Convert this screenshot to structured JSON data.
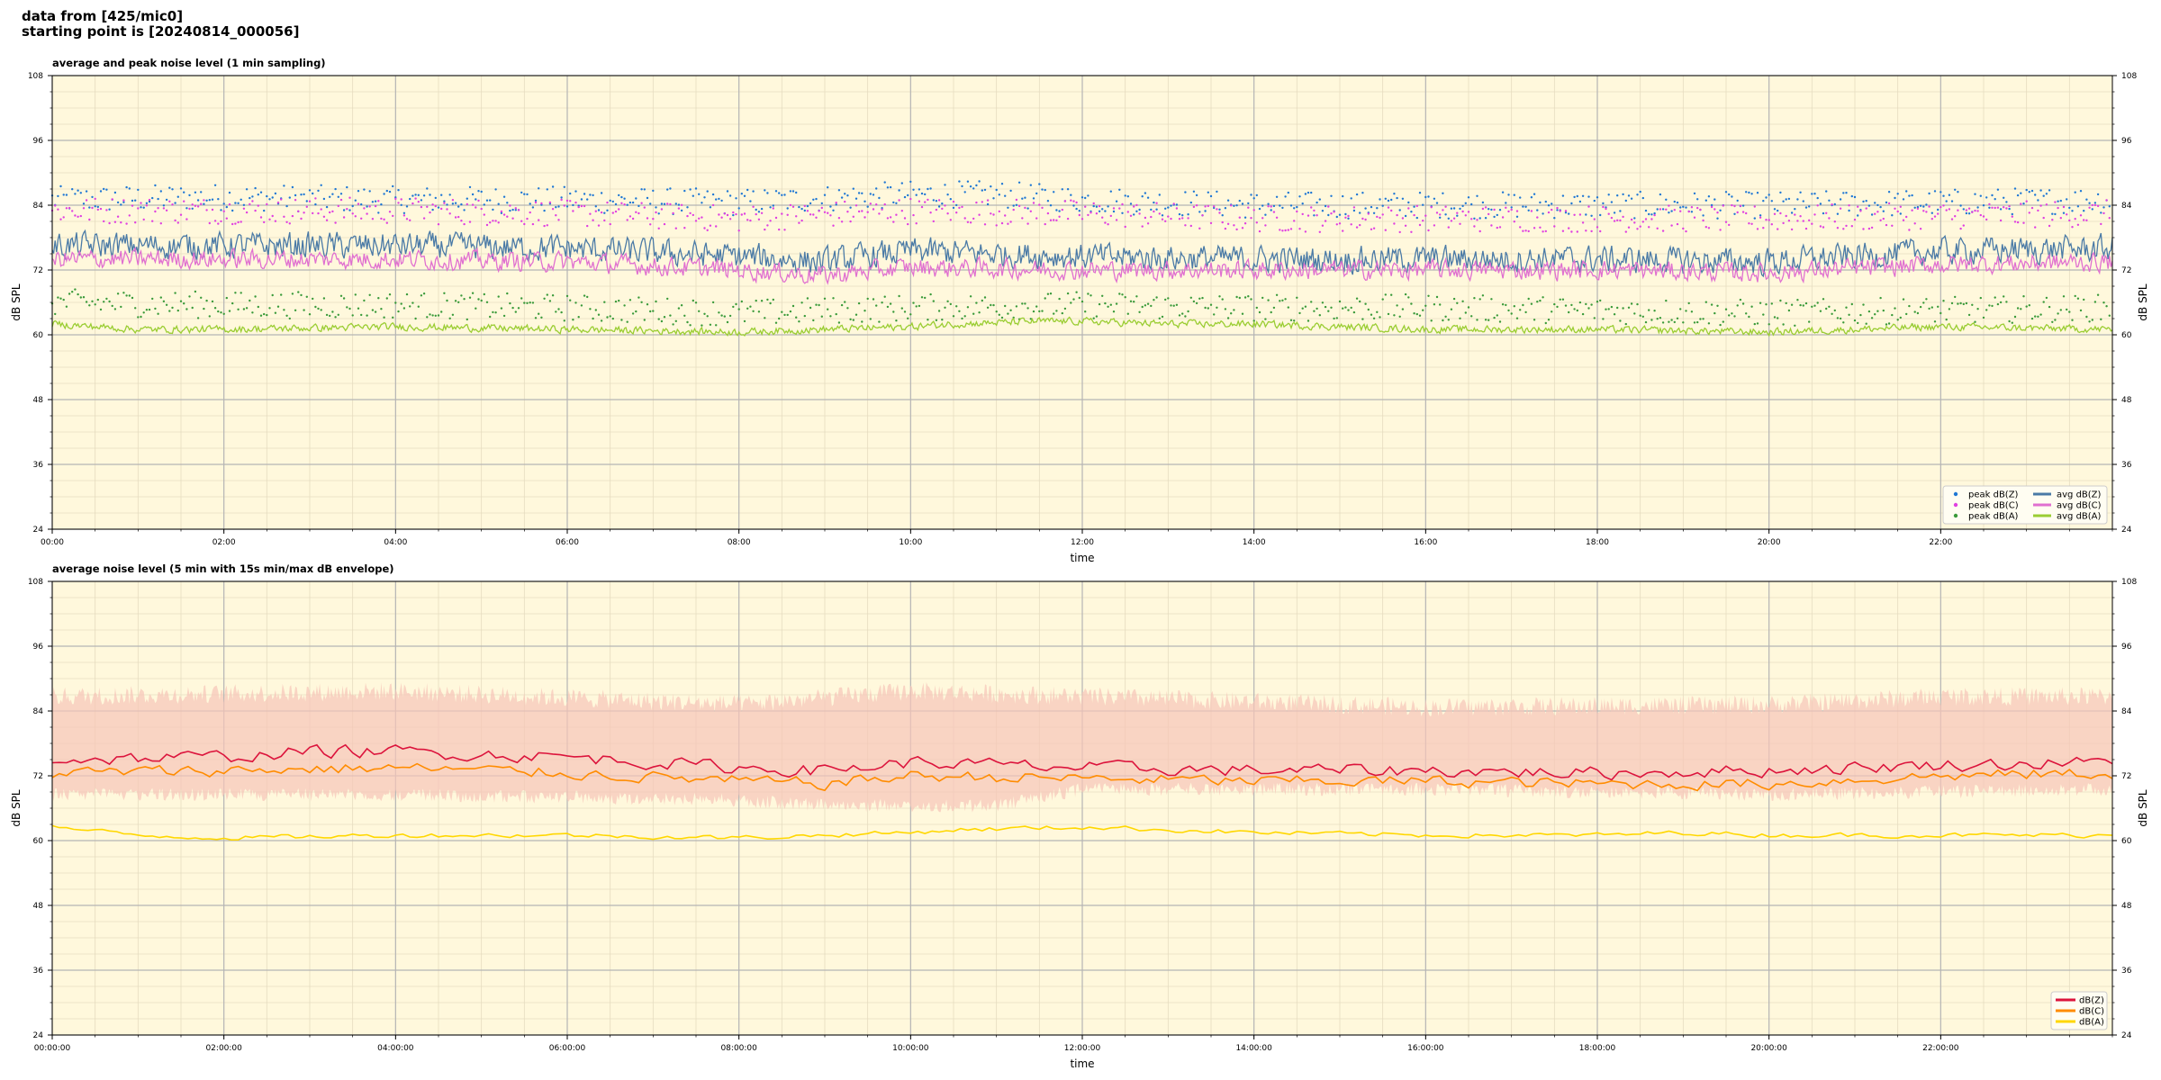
{
  "header": {
    "line1": "data from [425/mic0]",
    "line2": "starting point is [20240814_000056]"
  },
  "chart_data": [
    {
      "type": "line",
      "title": "average and peak noise level (1 min sampling)",
      "xlabel": "time",
      "ylabel": "dB SPL",
      "ylim": [
        24,
        108
      ],
      "yticks": [
        24,
        36,
        48,
        60,
        72,
        84,
        96,
        108
      ],
      "xlim_hours": [
        0,
        24
      ],
      "xticks": [
        "00:00",
        "02:00",
        "04:00",
        "06:00",
        "08:00",
        "10:00",
        "12:00",
        "14:00",
        "16:00",
        "18:00",
        "20:00",
        "22:00"
      ],
      "grid": true,
      "legend_position": "bottom-right",
      "series": [
        {
          "name": "peak dB(Z)",
          "style": "dots",
          "color": "#1f77d4",
          "baseline": [
            [
              0,
              85
            ],
            [
              2,
              85.5
            ],
            [
              4,
              85
            ],
            [
              6,
              85
            ],
            [
              8,
              84.5
            ],
            [
              10,
              86
            ],
            [
              11,
              86
            ],
            [
              12,
              85
            ],
            [
              14,
              84
            ],
            [
              16,
              84
            ],
            [
              18,
              84
            ],
            [
              20,
              84
            ],
            [
              22,
              84.5
            ],
            [
              24,
              85
            ]
          ],
          "spread": 2.5
        },
        {
          "name": "peak dB(C)",
          "style": "dots",
          "color": "#e040e0",
          "baseline": [
            [
              0,
              83
            ],
            [
              2,
              83
            ],
            [
              4,
              83
            ],
            [
              6,
              82.5
            ],
            [
              8,
              81.5
            ],
            [
              10,
              83
            ],
            [
              12,
              82.5
            ],
            [
              14,
              81.5
            ],
            [
              16,
              81.5
            ],
            [
              18,
              81.5
            ],
            [
              20,
              81.5
            ],
            [
              22,
              82
            ],
            [
              24,
              82.5
            ]
          ],
          "spread": 2.5
        },
        {
          "name": "peak dB(A)",
          "style": "dots",
          "color": "#3a9a3a",
          "baseline": [
            [
              0,
              66
            ],
            [
              2,
              65.5
            ],
            [
              4,
              65.5
            ],
            [
              6,
              65
            ],
            [
              8,
              64
            ],
            [
              10,
              65
            ],
            [
              12,
              65.5
            ],
            [
              14,
              65
            ],
            [
              16,
              65
            ],
            [
              18,
              64.5
            ],
            [
              20,
              64
            ],
            [
              22,
              64.5
            ],
            [
              24,
              65
            ]
          ],
          "spread": 2.5
        },
        {
          "name": "avg dB(Z)",
          "style": "line",
          "color": "#4a7aa6",
          "baseline": [
            [
              0,
              76.5
            ],
            [
              2,
              76.5
            ],
            [
              4,
              76.5
            ],
            [
              6,
              76
            ],
            [
              8,
              74.5
            ],
            [
              9,
              73.5
            ],
            [
              10,
              75.5
            ],
            [
              12,
              74.5
            ],
            [
              14,
              74
            ],
            [
              16,
              74
            ],
            [
              18,
              74
            ],
            [
              20,
              73.5
            ],
            [
              22,
              75.5
            ],
            [
              24,
              76
            ]
          ],
          "amp": 2.2
        },
        {
          "name": "avg dB(C)",
          "style": "line",
          "color": "#e070d0",
          "baseline": [
            [
              0,
              74
            ],
            [
              2,
              74
            ],
            [
              4,
              74
            ],
            [
              6,
              73.5
            ],
            [
              8,
              72
            ],
            [
              9,
              71
            ],
            [
              10,
              72.5
            ],
            [
              12,
              72
            ],
            [
              14,
              72
            ],
            [
              16,
              72
            ],
            [
              18,
              72
            ],
            [
              20,
              71.5
            ],
            [
              22,
              73
            ],
            [
              24,
              73.5
            ]
          ],
          "amp": 1.6
        },
        {
          "name": "avg dB(A)",
          "style": "line",
          "color": "#9acd32",
          "baseline": [
            [
              0,
              62
            ],
            [
              1,
              61
            ],
            [
              2,
              61
            ],
            [
              4,
              61.5
            ],
            [
              6,
              61
            ],
            [
              8,
              60.5
            ],
            [
              10,
              61.5
            ],
            [
              10.5,
              62
            ],
            [
              11.5,
              62.5
            ],
            [
              12,
              62.5
            ],
            [
              13,
              62
            ],
            [
              14,
              62
            ],
            [
              16,
              61
            ],
            [
              18,
              61
            ],
            [
              20,
              60.5
            ],
            [
              22,
              61.5
            ],
            [
              24,
              61
            ]
          ],
          "amp": 0.6
        }
      ]
    },
    {
      "type": "line",
      "title": "average noise level (5 min with 15s min/max dB envelope)",
      "xlabel": "time",
      "ylabel": "dB SPL",
      "ylim": [
        24,
        108
      ],
      "yticks": [
        24,
        36,
        48,
        60,
        72,
        84,
        96,
        108
      ],
      "xlim_hours": [
        0,
        24
      ],
      "xticks": [
        "00:00:00",
        "02:00:00",
        "04:00:00",
        "06:00:00",
        "08:00:00",
        "10:00:00",
        "12:00:00",
        "14:00:00",
        "16:00:00",
        "18:00:00",
        "20:00:00",
        "22:00:00"
      ],
      "grid": true,
      "legend_position": "bottom-right",
      "envelope": {
        "color": "#f7c4b8",
        "upper": [
          [
            0,
            86
          ],
          [
            4,
            87
          ],
          [
            8,
            84.5
          ],
          [
            10,
            87
          ],
          [
            12,
            86
          ],
          [
            16,
            84
          ],
          [
            20,
            84.5
          ],
          [
            22,
            86
          ],
          [
            24,
            86
          ]
        ],
        "lower": [
          [
            0,
            69
          ],
          [
            4,
            69
          ],
          [
            8,
            68
          ],
          [
            9,
            67
          ],
          [
            11,
            67
          ],
          [
            12,
            70
          ],
          [
            16,
            70
          ],
          [
            20,
            69
          ],
          [
            24,
            70
          ]
        ]
      },
      "series": [
        {
          "name": "dB(Z)",
          "style": "line",
          "color": "#dc143c",
          "baseline": [
            [
              0,
              75
            ],
            [
              2,
              75.5
            ],
            [
              3,
              76.5
            ],
            [
              4,
              76.5
            ],
            [
              6,
              75.5
            ],
            [
              8,
              73.5
            ],
            [
              9,
              73
            ],
            [
              10,
              74.5
            ],
            [
              12,
              73.5
            ],
            [
              14,
              73
            ],
            [
              16,
              73
            ],
            [
              18,
              72.5
            ],
            [
              20,
              73
            ],
            [
              22,
              74
            ],
            [
              24,
              74.5
            ]
          ],
          "amp": 1.1
        },
        {
          "name": "dB(C)",
          "style": "line",
          "color": "#ff8c00",
          "baseline": [
            [
              0,
              72.5
            ],
            [
              2,
              73
            ],
            [
              4,
              73.5
            ],
            [
              6,
              72.5
            ],
            [
              8,
              71
            ],
            [
              9,
              70.5
            ],
            [
              10,
              72
            ],
            [
              12,
              71.5
            ],
            [
              14,
              71
            ],
            [
              16,
              71
            ],
            [
              18,
              70.5
            ],
            [
              20,
              70.5
            ],
            [
              22,
              72
            ],
            [
              24,
              72.5
            ]
          ],
          "amp": 1.0
        },
        {
          "name": "dB(A)",
          "style": "line",
          "color": "#ffd700",
          "baseline": [
            [
              0,
              62.5
            ],
            [
              1,
              61
            ],
            [
              2,
              60.5
            ],
            [
              4,
              61
            ],
            [
              6,
              61
            ],
            [
              8,
              60.5
            ],
            [
              10,
              61.5
            ],
            [
              10.5,
              62
            ],
            [
              12,
              62.5
            ],
            [
              13,
              62
            ],
            [
              14,
              61.5
            ],
            [
              16,
              61
            ],
            [
              18,
              61
            ],
            [
              19,
              61.5
            ],
            [
              20,
              61
            ],
            [
              22,
              61
            ],
            [
              24,
              61
            ]
          ],
          "amp": 0.4
        }
      ]
    }
  ]
}
